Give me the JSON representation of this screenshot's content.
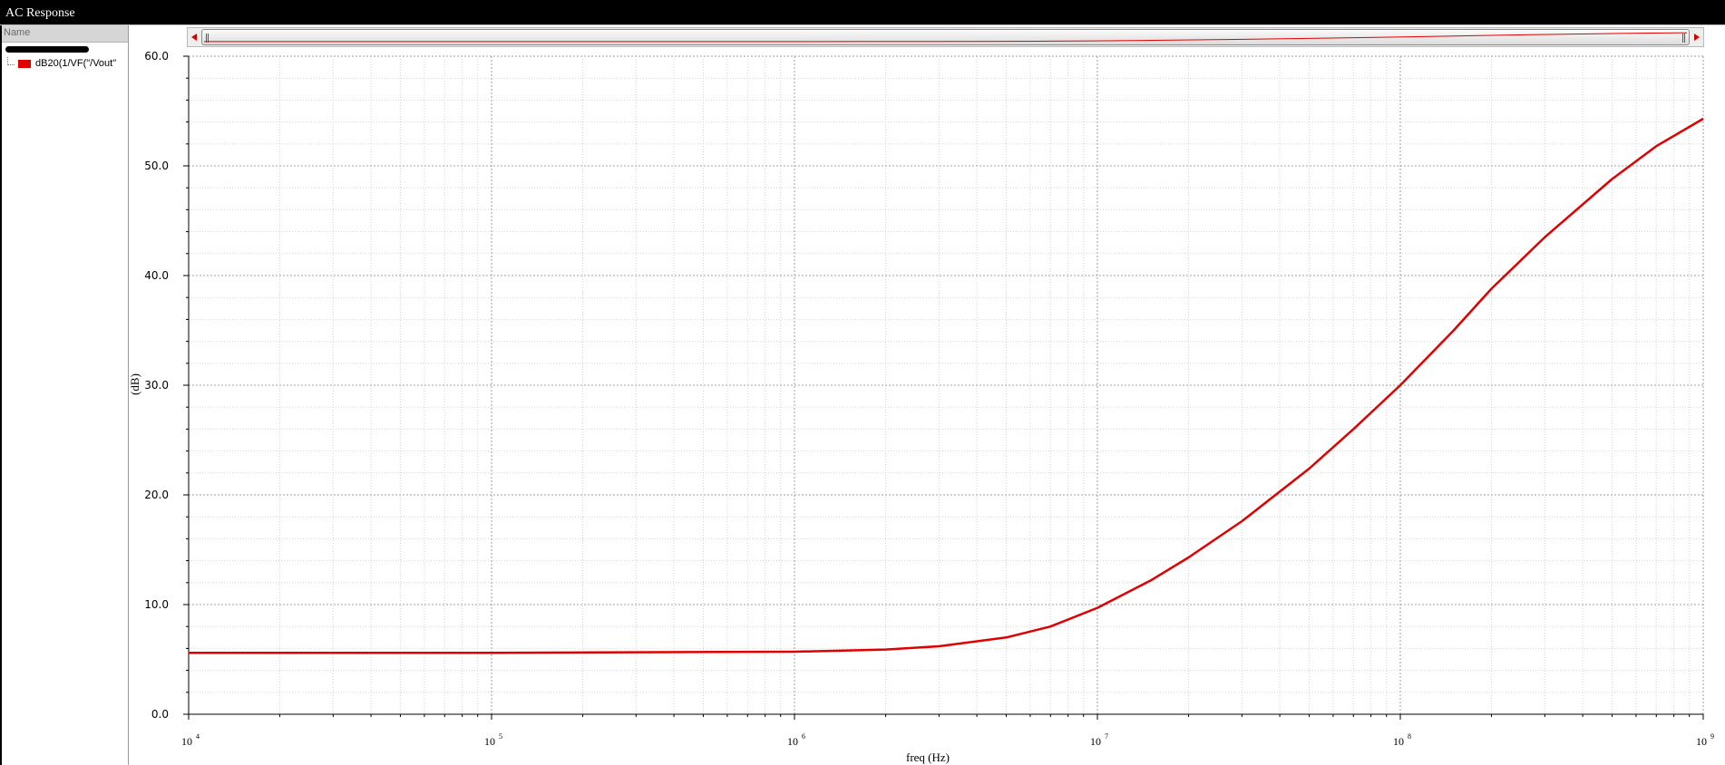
{
  "window": {
    "title": "AC Response"
  },
  "sidebar": {
    "header": "Name",
    "traces": [
      {
        "label": "dB20(1/VF(\"/Vout\"",
        "color": "#e00000"
      }
    ]
  },
  "chart_data": {
    "type": "line",
    "xlabel": "freq (Hz)",
    "ylabel": "(dB)",
    "xscale": "log",
    "xlim": [
      10000,
      1000000000
    ],
    "ylim": [
      0,
      60
    ],
    "x_ticks": [
      {
        "base": "10",
        "exp": "4",
        "value": 10000
      },
      {
        "base": "10",
        "exp": "5",
        "value": 100000
      },
      {
        "base": "10",
        "exp": "6",
        "value": 1000000
      },
      {
        "base": "10",
        "exp": "7",
        "value": 10000000
      },
      {
        "base": "10",
        "exp": "8",
        "value": 100000000
      },
      {
        "base": "10",
        "exp": "9",
        "value": 1000000000
      }
    ],
    "y_ticks": [
      "0.0",
      "10.0",
      "20.0",
      "30.0",
      "40.0",
      "50.0",
      "60.0"
    ],
    "grid": true,
    "series": [
      {
        "name": "dB20(1/VF(\"/Vout\"",
        "color": "#e00000",
        "x": [
          10000,
          100000,
          1000000,
          2000000,
          3000000,
          5000000,
          7000000,
          10000000,
          15000000,
          20000000,
          30000000,
          50000000,
          70000000,
          100000000,
          150000000,
          200000000,
          300000000,
          500000000,
          700000000,
          1000000000
        ],
        "values": [
          5.6,
          5.6,
          5.7,
          5.9,
          6.2,
          7.0,
          8.0,
          9.7,
          12.2,
          14.3,
          17.6,
          22.4,
          26.0,
          30.0,
          35.0,
          38.8,
          43.5,
          48.8,
          51.8,
          54.3
        ]
      }
    ]
  }
}
